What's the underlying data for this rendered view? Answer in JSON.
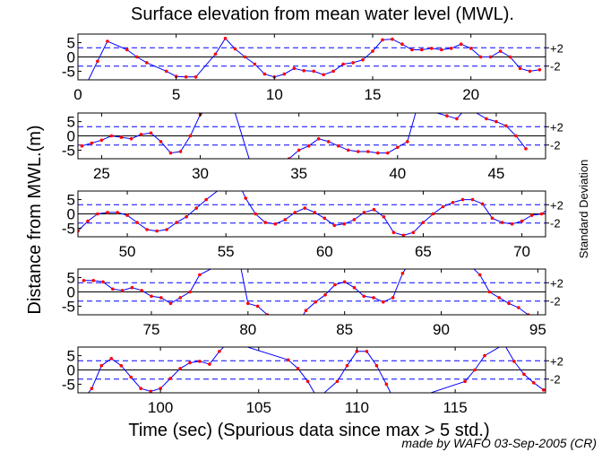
{
  "chart_data": {
    "type": "line",
    "title": "Surface elevation from mean water level (MWL).",
    "xlabel": "Time (sec) (Spurious data since max > 5 std.)",
    "ylabel": "Distance from MWL.(m)",
    "right_label": "Standard Deviation",
    "footer": "made by WAFO 03-Sep-2005 (CR)",
    "ylim": [
      -8,
      8
    ],
    "yticks": [
      -5,
      0,
      5
    ],
    "std_lines": [
      {
        "value": 3.2,
        "label": "+2"
      },
      {
        "value": -3.2,
        "label": "-2"
      }
    ],
    "colors": {
      "line": "#0000ff",
      "marker": "#ff0000",
      "dashed": "#0000ff",
      "axis": "#000000"
    },
    "panels": [
      {
        "xlim": [
          0,
          23.8
        ],
        "xticks": [
          0,
          5,
          10,
          15,
          20
        ],
        "points": [
          [
            0.5,
            -8.5
          ],
          [
            1.0,
            -1.5
          ],
          [
            1.5,
            5.5
          ],
          [
            2.5,
            2.5
          ],
          [
            3.0,
            0.0
          ],
          [
            3.5,
            -2.0
          ],
          [
            4.5,
            -5.0
          ],
          [
            5.0,
            -6.8
          ],
          [
            5.5,
            -7.0
          ],
          [
            6.0,
            -7.0
          ],
          [
            7.0,
            1.0
          ],
          [
            7.5,
            6.5
          ],
          [
            8.0,
            2.8
          ],
          [
            8.5,
            0.0
          ],
          [
            9.0,
            -2.5
          ],
          [
            9.5,
            -6.0
          ],
          [
            10.0,
            -7.0
          ],
          [
            10.5,
            -6.0
          ],
          [
            11.0,
            -4.0
          ],
          [
            11.5,
            -4.8
          ],
          [
            12.0,
            -5.0
          ],
          [
            12.5,
            -6.2
          ],
          [
            13.0,
            -5.0
          ],
          [
            13.5,
            -2.5
          ],
          [
            14.0,
            -2.0
          ],
          [
            14.5,
            -1.0
          ],
          [
            15.0,
            2.0
          ],
          [
            15.5,
            6.0
          ],
          [
            16.0,
            6.2
          ],
          [
            16.5,
            4.5
          ],
          [
            17.0,
            2.5
          ],
          [
            17.5,
            2.5
          ],
          [
            18.0,
            3.0
          ],
          [
            18.5,
            2.5
          ],
          [
            19.0,
            3.0
          ],
          [
            19.5,
            4.5
          ],
          [
            20.0,
            3.0
          ],
          [
            20.5,
            0.0
          ],
          [
            21.0,
            0.0
          ],
          [
            21.5,
            2.0
          ],
          [
            22.0,
            0.0
          ],
          [
            22.5,
            -4.0
          ],
          [
            23.0,
            -5.0
          ],
          [
            23.5,
            -4.5
          ]
        ]
      },
      {
        "xlim": [
          23.8,
          47.5
        ],
        "xticks": [
          25,
          30,
          35,
          40,
          45
        ],
        "points": [
          [
            24.0,
            -3.5
          ],
          [
            24.5,
            -2.5
          ],
          [
            25.0,
            -1.5
          ],
          [
            25.5,
            0.0
          ],
          [
            26.0,
            -0.5
          ],
          [
            26.5,
            -1.0
          ],
          [
            27.0,
            0.5
          ],
          [
            27.5,
            1.0
          ],
          [
            28.0,
            -2.0
          ],
          [
            28.5,
            -6.0
          ],
          [
            29.0,
            -5.5
          ],
          [
            29.5,
            0.0
          ],
          [
            30.0,
            7.5
          ],
          [
            31.5,
            14.0
          ],
          [
            32.5,
            -8.5
          ],
          [
            33.0,
            -14.0
          ],
          [
            34.5,
            -8.0
          ],
          [
            35.0,
            -5.0
          ],
          [
            35.5,
            -3.5
          ],
          [
            36.0,
            -1.0
          ],
          [
            36.5,
            -2.0
          ],
          [
            37.0,
            -3.5
          ],
          [
            37.5,
            -5.0
          ],
          [
            38.0,
            -5.5
          ],
          [
            38.5,
            -5.5
          ],
          [
            39.0,
            -6.0
          ],
          [
            39.5,
            -6.0
          ],
          [
            40.0,
            -4.0
          ],
          [
            40.5,
            -2.0
          ],
          [
            41.0,
            10.0
          ],
          [
            42.5,
            7.0
          ],
          [
            43.0,
            6.0
          ],
          [
            43.5,
            10.0
          ],
          [
            44.5,
            6.0
          ],
          [
            45.0,
            5.0
          ],
          [
            45.5,
            3.5
          ],
          [
            46.0,
            0.0
          ],
          [
            46.5,
            -4.5
          ]
        ]
      },
      {
        "xlim": [
          47.5,
          71.2
        ],
        "xticks": [
          50,
          55,
          60,
          65,
          70
        ],
        "points": [
          [
            47.5,
            -6.0
          ],
          [
            48.0,
            -2.5
          ],
          [
            48.5,
            0.0
          ],
          [
            49.0,
            0.5
          ],
          [
            49.5,
            0.5
          ],
          [
            50.0,
            -0.5
          ],
          [
            50.5,
            -3.0
          ],
          [
            51.0,
            -5.5
          ],
          [
            51.5,
            -6.0
          ],
          [
            52.0,
            -5.5
          ],
          [
            52.5,
            -3.0
          ],
          [
            53.0,
            -1.0
          ],
          [
            53.5,
            2.0
          ],
          [
            54.0,
            5.0
          ],
          [
            55.5,
            13.0
          ],
          [
            56.0,
            5.5
          ],
          [
            56.5,
            0.0
          ],
          [
            57.0,
            -3.0
          ],
          [
            57.5,
            -3.5
          ],
          [
            58.0,
            -2.0
          ],
          [
            58.5,
            0.5
          ],
          [
            59.0,
            2.0
          ],
          [
            59.5,
            0.5
          ],
          [
            60.0,
            -1.5
          ],
          [
            60.5,
            -4.0
          ],
          [
            61.0,
            -3.5
          ],
          [
            61.5,
            -2.0
          ],
          [
            62.0,
            0.5
          ],
          [
            62.5,
            1.5
          ],
          [
            63.0,
            -1.0
          ],
          [
            63.5,
            -6.5
          ],
          [
            64.0,
            -7.5
          ],
          [
            64.5,
            -6.5
          ],
          [
            65.0,
            -3.0
          ],
          [
            65.5,
            0.0
          ],
          [
            66.0,
            2.5
          ],
          [
            66.5,
            4.0
          ],
          [
            67.0,
            5.0
          ],
          [
            67.5,
            5.0
          ],
          [
            68.0,
            3.5
          ],
          [
            68.5,
            -1.5
          ],
          [
            69.0,
            -3.0
          ],
          [
            69.5,
            -3.5
          ],
          [
            70.0,
            -2.5
          ],
          [
            70.5,
            -0.5
          ],
          [
            71.0,
            0.0
          ],
          [
            71.5,
            2.5
          ]
        ]
      },
      {
        "xlim": [
          71.2,
          95.4
        ],
        "xticks": [
          75,
          80,
          85,
          90,
          95
        ],
        "points": [
          [
            71.5,
            4.0
          ],
          [
            72.0,
            4.0
          ],
          [
            72.5,
            3.5
          ],
          [
            73.0,
            1.0
          ],
          [
            73.5,
            0.5
          ],
          [
            74.0,
            1.5
          ],
          [
            74.5,
            0.5
          ],
          [
            75.0,
            -1.5
          ],
          [
            75.5,
            -2.0
          ],
          [
            76.0,
            -4.0
          ],
          [
            76.5,
            -2.0
          ],
          [
            77.0,
            0.0
          ],
          [
            77.5,
            6.0
          ],
          [
            79.5,
            13.0
          ],
          [
            80.0,
            -4.0
          ],
          [
            80.5,
            -5.0
          ],
          [
            81.0,
            -8.0
          ],
          [
            82.0,
            -18.0
          ],
          [
            83.0,
            -6.5
          ],
          [
            83.5,
            -3.5
          ],
          [
            84.0,
            -1.0
          ],
          [
            84.5,
            2.5
          ],
          [
            85.0,
            3.5
          ],
          [
            85.5,
            1.5
          ],
          [
            86.0,
            -1.5
          ],
          [
            86.5,
            -2.0
          ],
          [
            87.0,
            -3.5
          ],
          [
            87.5,
            -2.0
          ],
          [
            88.0,
            6.5
          ],
          [
            89.5,
            22.0
          ],
          [
            92.0,
            6.0
          ],
          [
            92.5,
            0.0
          ],
          [
            93.0,
            -2.0
          ],
          [
            93.5,
            -4.0
          ],
          [
            94.0,
            -5.5
          ],
          [
            94.5,
            -8.0
          ]
        ]
      },
      {
        "xlim": [
          95.8,
          119.6
        ],
        "xticks": [
          100,
          105,
          110,
          115
        ],
        "points": [
          [
            96.0,
            -11.0
          ],
          [
            96.5,
            -6.5
          ],
          [
            97.0,
            1.5
          ],
          [
            97.5,
            4.0
          ],
          [
            98.0,
            1.5
          ],
          [
            98.5,
            -2.5
          ],
          [
            99.0,
            -6.5
          ],
          [
            99.5,
            -7.5
          ],
          [
            100.0,
            -6.5
          ],
          [
            100.5,
            -3.0
          ],
          [
            101.0,
            0.5
          ],
          [
            101.5,
            2.5
          ],
          [
            102.0,
            3.0
          ],
          [
            102.5,
            2.0
          ],
          [
            103.0,
            6.5
          ],
          [
            103.5,
            10.0
          ],
          [
            106.5,
            3.5
          ],
          [
            107.0,
            0.5
          ],
          [
            107.5,
            -4.0
          ],
          [
            108.0,
            -10.0
          ],
          [
            109.0,
            -4.0
          ],
          [
            109.5,
            1.5
          ],
          [
            110.0,
            6.5
          ],
          [
            110.5,
            6.5
          ],
          [
            111.0,
            1.5
          ],
          [
            111.5,
            -5.0
          ],
          [
            112.0,
            -12.0
          ],
          [
            115.5,
            -4.0
          ],
          [
            116.0,
            0.0
          ],
          [
            116.5,
            5.0
          ],
          [
            117.5,
            9.0
          ],
          [
            118.0,
            3.0
          ],
          [
            118.5,
            -1.5
          ],
          [
            119.0,
            -4.5
          ],
          [
            119.5,
            -7.0
          ],
          [
            120.0,
            -7.5
          ]
        ]
      }
    ]
  }
}
